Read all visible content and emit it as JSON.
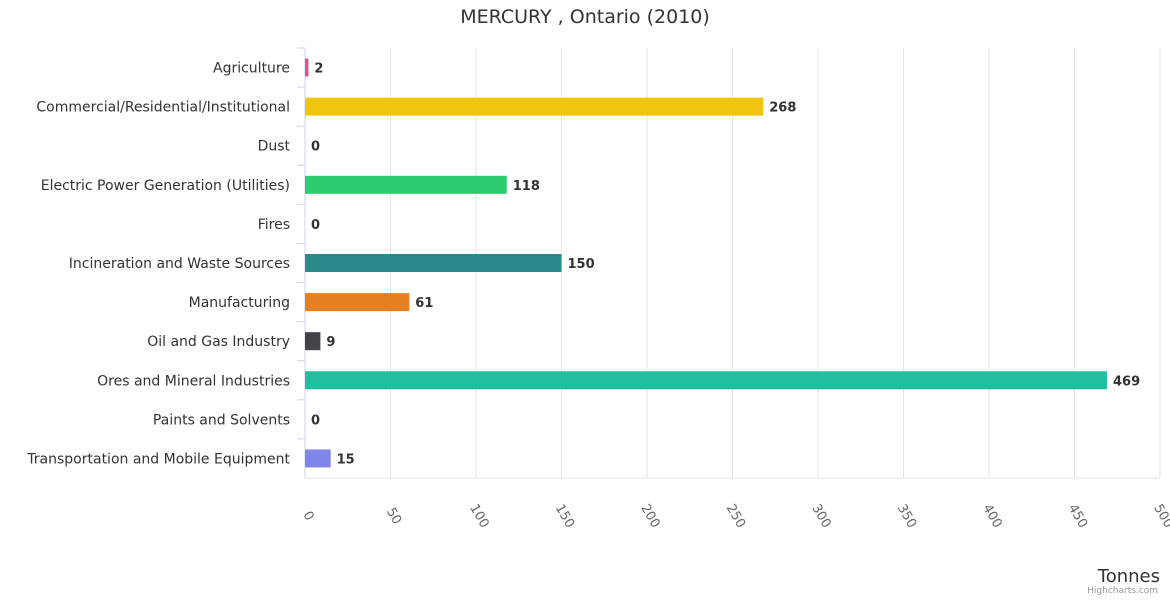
{
  "credits": "Highcharts.com",
  "colors": {
    "grid": "#e6e6e6",
    "axis_line": "#ccd6eb",
    "text": "#333333",
    "label_bold": "#333333"
  },
  "chart_data": {
    "type": "bar",
    "orientation": "horizontal",
    "title": "MERCURY , Ontario (2010)",
    "xlabel": "",
    "ylabel": "Tonnes",
    "ylim": [
      0,
      500
    ],
    "ticks": [
      0,
      50,
      100,
      150,
      200,
      250,
      300,
      350,
      400,
      450,
      500
    ],
    "grid": true,
    "categories": [
      "Agriculture",
      "Commercial/Residential/Institutional",
      "Dust",
      "Electric Power Generation (Utilities)",
      "Fires",
      "Incineration and Waste Sources",
      "Manufacturing",
      "Oil and Gas Industry",
      "Ores and Mineral Industries",
      "Paints and Solvents",
      "Transportation and Mobile Equipment"
    ],
    "values": [
      2,
      268,
      0,
      118,
      0,
      150,
      61,
      9,
      469,
      0,
      15
    ],
    "bar_colors": [
      "#e4508b",
      "#f1c40f",
      "#2ecc71",
      "#2ecc71",
      "#c0392b",
      "#2a8a8a",
      "#e67e22",
      "#424249",
      "#1fbf9f",
      "#7cb5ec",
      "#8085e9"
    ]
  }
}
